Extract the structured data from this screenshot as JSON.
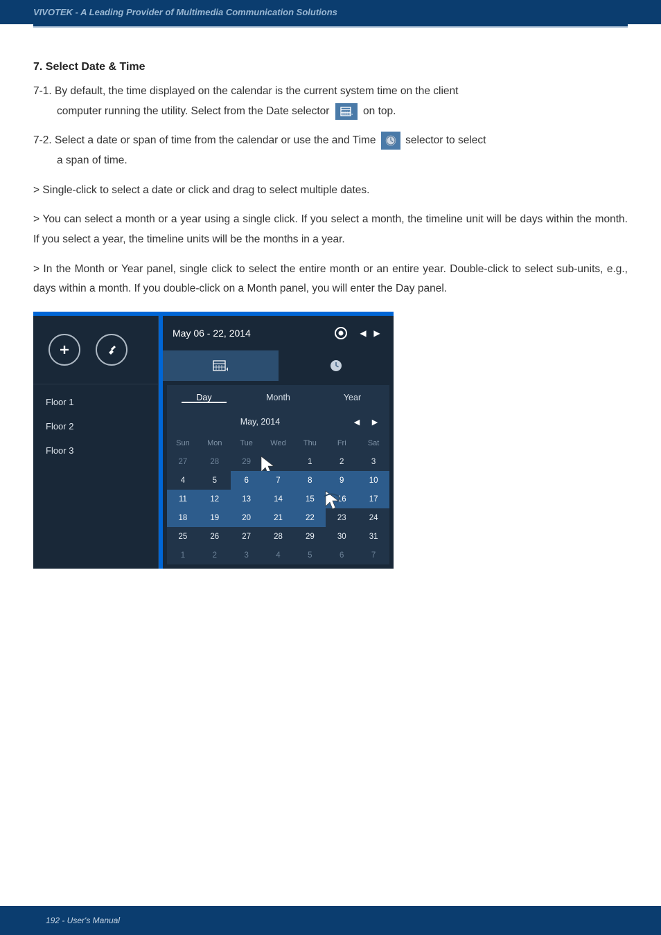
{
  "header": {
    "tagline": "VIVOTEK - A Leading Provider of Multimedia Communication Solutions"
  },
  "section": {
    "title": "7. Select Date & Time",
    "p1_a": "7-1. By default, the time displayed on the calendar is the current system time on the client",
    "p1_b": "computer running the utility. Select from the Date selector ",
    "p1_c": " on top.",
    "p2_a": "7-2. Select a date or span of time from the calendar or use the and Time ",
    "p2_b": " selector to select",
    "p2_c": "a span of time.",
    "p3": "> Single-click to select a date or click and drag to select multiple dates.",
    "p4": "> You can select a month or a year using a single click. If you select a month, the timeline unit will be days within the month. If you select a year, the timeline units will be the months in a year.",
    "p5": "> In the Month or Year panel, single click to select the entire month or an entire year. Double-click to select sub-units, e.g., days within a month. If you double-click on a Month panel, you will enter the Day panel."
  },
  "widget": {
    "floors": [
      "Floor 1",
      "Floor 2",
      "Floor 3"
    ],
    "range": "May 06 - 22, 2014",
    "tabs": {
      "day": "Day",
      "month": "Month",
      "year": "Year"
    },
    "month_label": "May, 2014",
    "dow": [
      "Sun",
      "Mon",
      "Tue",
      "Wed",
      "Thu",
      "Fri",
      "Sat"
    ],
    "rows": [
      [
        27,
        28,
        29,
        30,
        1,
        2,
        3
      ],
      [
        4,
        5,
        6,
        7,
        8,
        9,
        10
      ],
      [
        11,
        12,
        13,
        14,
        15,
        16,
        17
      ],
      [
        18,
        19,
        20,
        21,
        22,
        23,
        24
      ],
      [
        25,
        26,
        27,
        28,
        29,
        30,
        31
      ],
      [
        1,
        2,
        3,
        4,
        5,
        6,
        7
      ]
    ],
    "cell_style": [
      [
        "faded",
        "faded",
        "faded",
        "faded",
        "",
        "",
        ""
      ],
      [
        "",
        "",
        "sel",
        "sel",
        "sel",
        "sel",
        "sel"
      ],
      [
        "sel",
        "sel",
        "sel",
        "sel",
        "sel",
        "sel",
        "sel"
      ],
      [
        "sel",
        "sel",
        "sel",
        "sel",
        "sel",
        "",
        ""
      ],
      [
        "",
        "",
        "",
        "",
        "",
        "",
        ""
      ],
      [
        "faded",
        "faded",
        "faded",
        "faded",
        "faded",
        "faded",
        "faded"
      ]
    ],
    "colors": {
      "panel_bg": "#213449",
      "sel_bg": "#2d5c8c",
      "widget_bg": "#192838",
      "accent": "#0066d6"
    }
  },
  "footer": {
    "text": "192 - User's Manual"
  }
}
